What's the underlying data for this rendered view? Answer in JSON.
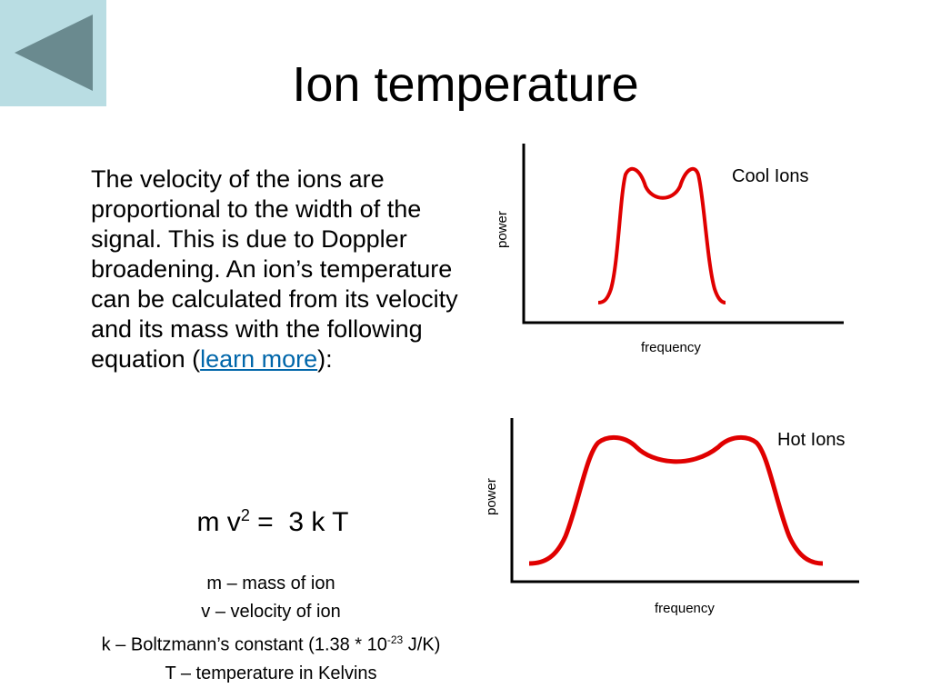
{
  "header": {
    "title": "Ion temperature"
  },
  "body": {
    "paragraph": {
      "text": "The velocity of the ions are proportional to the width of the signal.  This is due to Doppler broadening.  An ion’s temperature can be calculated from its velocity and its mass with the following equation (",
      "link": "learn more",
      "tail": "):"
    },
    "equation": {
      "left": "m v",
      "exponent": "2",
      "right": " =  3 k T"
    },
    "definitions": [
      {
        "text": "m – mass of ion"
      },
      {
        "text": "v – velocity of ion"
      },
      {
        "text": "k – Boltzmann’s constant (1.38 * 10",
        "exponent": "-23",
        "tail": " J/K)"
      },
      {
        "text": "T – temperature in Kelvins"
      }
    ]
  },
  "figures": [
    {
      "label": "Cool Ions",
      "y_axis": "power",
      "x_axis": "frequency"
    },
    {
      "label": "Hot Ions",
      "y_axis": "power",
      "x_axis": "frequency"
    }
  ]
}
